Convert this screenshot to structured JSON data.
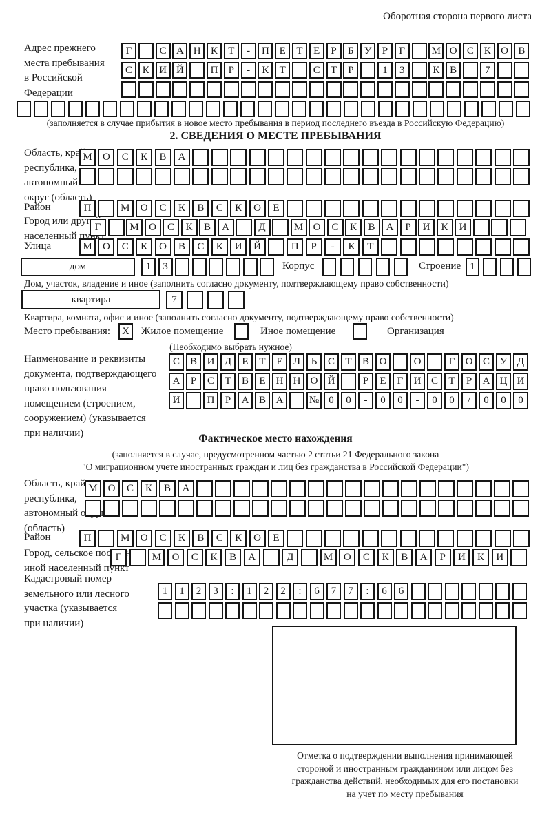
{
  "page": {
    "header_note": "Оборотная сторона первого листа"
  },
  "prev_address": {
    "label": [
      "Адрес прежнего",
      "места пребывания",
      "в Российской",
      "Федерации"
    ],
    "rows": [
      {
        "text": "Г САНКТ-ПЕТЕРБУРГ МОСКОВ",
        "count": 24
      },
      {
        "text": "СКИЙ ПР-КТ СТР 13 КВ 7",
        "count": 24
      },
      {
        "text": "",
        "count": 24
      },
      {
        "text": "",
        "count": 30
      }
    ],
    "caption": "(заполняется в случае прибытия в новое место пребывания в период последнего въезда в Российскую Федерацию)"
  },
  "section2": {
    "title": "2. СВЕДЕНИЯ О МЕСТЕ ПРЕБЫВАНИЯ",
    "region": {
      "label": [
        "Область, край,",
        "республика,",
        "автономный",
        "округ (область)"
      ],
      "rows": [
        {
          "text": "МОСКВА",
          "count": 24
        },
        {
          "text": "",
          "count": 24
        }
      ]
    },
    "district": {
      "label": "Район",
      "row": {
        "text": "П МОСКВСКОЕ",
        "count": 24
      }
    },
    "city": {
      "label": [
        "Город или другой",
        "населенный пункт"
      ],
      "row": {
        "text": "Г МОСКВА Д МОСКВАРИКИ",
        "count": 24
      }
    },
    "street": {
      "label": "Улица",
      "row": {
        "text": "МОСКОВСКИЙ ПР-КТ",
        "count": 24
      }
    },
    "house": {
      "box_label": "дом",
      "row": {
        "text": "13",
        "count": 8
      },
      "korpus_label": "Корпус",
      "korpus_row": {
        "text": "",
        "count": 5
      },
      "stroenie_label": "Строение",
      "stroenie_row": {
        "text": "1",
        "count": 4
      },
      "caption": "Дом, участок, владение и иное (заполнить согласно документу, подтверждающему право собственности)"
    },
    "apartment": {
      "box_label": "квартира",
      "row": {
        "text": "7",
        "count": 4
      },
      "caption": "Квартира, комната, офис и иное (заполнить согласно документу, подтверждающему право собственности)"
    },
    "stay_type": {
      "label": "Место пребывания:",
      "options": [
        {
          "label": "Жилое помещение",
          "mark": "X"
        },
        {
          "label": "Иное помещение",
          "mark": ""
        },
        {
          "label": "Организация",
          "mark": ""
        }
      ],
      "note": "(Необходимо выбрать нужное)"
    },
    "document": {
      "label": [
        "Наименование и реквизиты",
        "документа, подтверждающего",
        "право пользования",
        "помещением (строением,",
        "сооружением) (указывается",
        "при наличии)"
      ],
      "rows": [
        {
          "text": "СВИДЕТЕЛЬСТВО О ГОСУД",
          "count": 21
        },
        {
          "text": "АРСТВЕННОЙ РЕГИСТРАЦИ",
          "count": 21
        },
        {
          "text": "И ПРАВА №00-00-00/000",
          "count": 21
        }
      ]
    }
  },
  "section3": {
    "title": "Фактическое место нахождения",
    "note_lines": [
      "(заполняется в случае, предусмотренном частью 2 статьи 21 Федерального закона",
      "\"О миграционном учете иностранных граждан и лиц без гражданства в Российской Федерации\")"
    ],
    "region": {
      "label": [
        "Область, край,",
        "республика,",
        "автономный округ",
        "(область)"
      ],
      "rows": [
        {
          "text": "МОСКВА",
          "count": 24
        },
        {
          "text": "",
          "count": 24
        }
      ]
    },
    "district": {
      "label": "Район",
      "row": {
        "text": "П МОСКВСКОЕ",
        "count": 24
      }
    },
    "city": {
      "label": [
        "Город, сельское поселение,",
        "иной населенный пункт"
      ],
      "row": {
        "text": "Г МОСКВА Д МОСКВАРИКИ",
        "count": 22
      }
    },
    "cadastral": {
      "label": [
        "Кадастровый номер",
        "земельного или лесного",
        "участка (указывается",
        "при наличии)"
      ],
      "rows": [
        {
          "text": "1123:122:677:66",
          "count": 22
        },
        {
          "text": "",
          "count": 22
        }
      ]
    },
    "mark_area_caption": [
      "Отметка о подтверждении выполнения принимающей",
      "стороной и иностранным гражданином или лицом без",
      "гражданства действий, необходимых для его постановки",
      "на учет по месту пребывания"
    ]
  },
  "colors": {
    "ink": "#1a1a1a",
    "paper": "#ffffff"
  }
}
